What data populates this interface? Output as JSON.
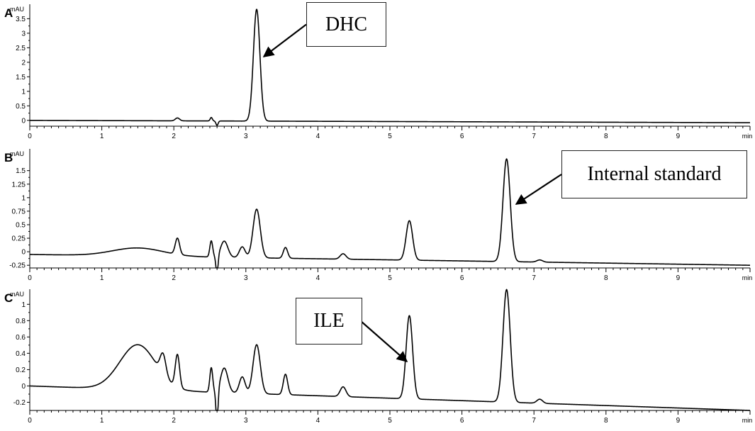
{
  "chart_data": [
    {
      "type": "line",
      "panel_label": "A",
      "y_unit": "mAU",
      "x_unit": "min",
      "xlim": [
        0,
        10
      ],
      "ylim": [
        -0.2,
        3.9
      ],
      "x_ticks": [
        "0",
        "1",
        "2",
        "3",
        "4",
        "5",
        "6",
        "7",
        "8",
        "9"
      ],
      "y_ticks": [
        "0",
        "0.5",
        "1",
        "1.5",
        "2",
        "2.5",
        "3",
        "3.5"
      ],
      "baseline": {
        "start": 0.0,
        "end": -0.08
      },
      "peaks": [
        {
          "t": 2.05,
          "h": 0.1,
          "w": 0.03
        },
        {
          "t": 2.52,
          "h": 0.12,
          "w": 0.015
        },
        {
          "t": 2.6,
          "h": -0.15,
          "w": 0.015
        },
        {
          "t": 3.15,
          "h": 3.85,
          "w": 0.045
        }
      ],
      "annotation": {
        "text": "DHC",
        "x": 3.2,
        "y": 2.2
      }
    },
    {
      "type": "line",
      "panel_label": "B",
      "y_unit": "mAU",
      "x_unit": "min",
      "xlim": [
        0,
        10
      ],
      "ylim": [
        -0.3,
        1.85
      ],
      "x_ticks": [
        "0",
        "1",
        "2",
        "3",
        "4",
        "5",
        "6",
        "7",
        "8",
        "9"
      ],
      "y_ticks": [
        "-0.25",
        "0",
        "0.25",
        "0.5",
        "0.75",
        "1",
        "1.25",
        "1.5"
      ],
      "baseline": {
        "start": -0.05,
        "end": -0.25
      },
      "peaks": [
        {
          "t": 1.5,
          "h": 0.15,
          "w": 0.35
        },
        {
          "t": 2.05,
          "h": 0.3,
          "w": 0.03
        },
        {
          "t": 2.52,
          "h": 0.3,
          "w": 0.02
        },
        {
          "t": 2.6,
          "h": -0.35,
          "w": 0.015
        },
        {
          "t": 2.7,
          "h": 0.3,
          "w": 0.05
        },
        {
          "t": 2.95,
          "h": 0.2,
          "w": 0.04
        },
        {
          "t": 3.15,
          "h": 0.9,
          "w": 0.05
        },
        {
          "t": 3.55,
          "h": 0.2,
          "w": 0.03
        },
        {
          "t": 4.35,
          "h": 0.1,
          "w": 0.04
        },
        {
          "t": 5.27,
          "h": 0.73,
          "w": 0.045
        },
        {
          "t": 6.62,
          "h": 1.9,
          "w": 0.05
        },
        {
          "t": 7.08,
          "h": 0.04,
          "w": 0.04
        }
      ],
      "annotation": {
        "text": "Internal standard",
        "x": 6.7,
        "y": 1.2
      }
    },
    {
      "type": "line",
      "panel_label": "C",
      "y_unit": "mAU",
      "x_unit": "min",
      "xlim": [
        0,
        10
      ],
      "ylim": [
        -0.3,
        1.15
      ],
      "x_ticks": [
        "0",
        "1",
        "2",
        "3",
        "4",
        "5",
        "6",
        "7",
        "8",
        "9"
      ],
      "y_ticks": [
        "-0.2",
        "0",
        "0.2",
        "0.4",
        "0.6",
        "0.8",
        "1"
      ],
      "baseline": {
        "start": 0.0,
        "end": -0.3
      },
      "peaks": [
        {
          "t": 1.5,
          "h": 0.55,
          "w": 0.25
        },
        {
          "t": 1.85,
          "h": 0.25,
          "w": 0.04
        },
        {
          "t": 2.05,
          "h": 0.4,
          "w": 0.03
        },
        {
          "t": 2.52,
          "h": 0.3,
          "w": 0.02
        },
        {
          "t": 2.6,
          "h": -0.4,
          "w": 0.015
        },
        {
          "t": 2.7,
          "h": 0.3,
          "w": 0.05
        },
        {
          "t": 2.95,
          "h": 0.2,
          "w": 0.04
        },
        {
          "t": 3.15,
          "h": 0.6,
          "w": 0.05
        },
        {
          "t": 3.55,
          "h": 0.25,
          "w": 0.03
        },
        {
          "t": 4.35,
          "h": 0.12,
          "w": 0.04
        },
        {
          "t": 5.27,
          "h": 1.02,
          "w": 0.045
        },
        {
          "t": 6.62,
          "h": 1.38,
          "w": 0.05
        },
        {
          "t": 7.08,
          "h": 0.05,
          "w": 0.04
        }
      ],
      "annotation": {
        "text": "ILE",
        "x": 5.25,
        "y": 0.5
      }
    }
  ]
}
